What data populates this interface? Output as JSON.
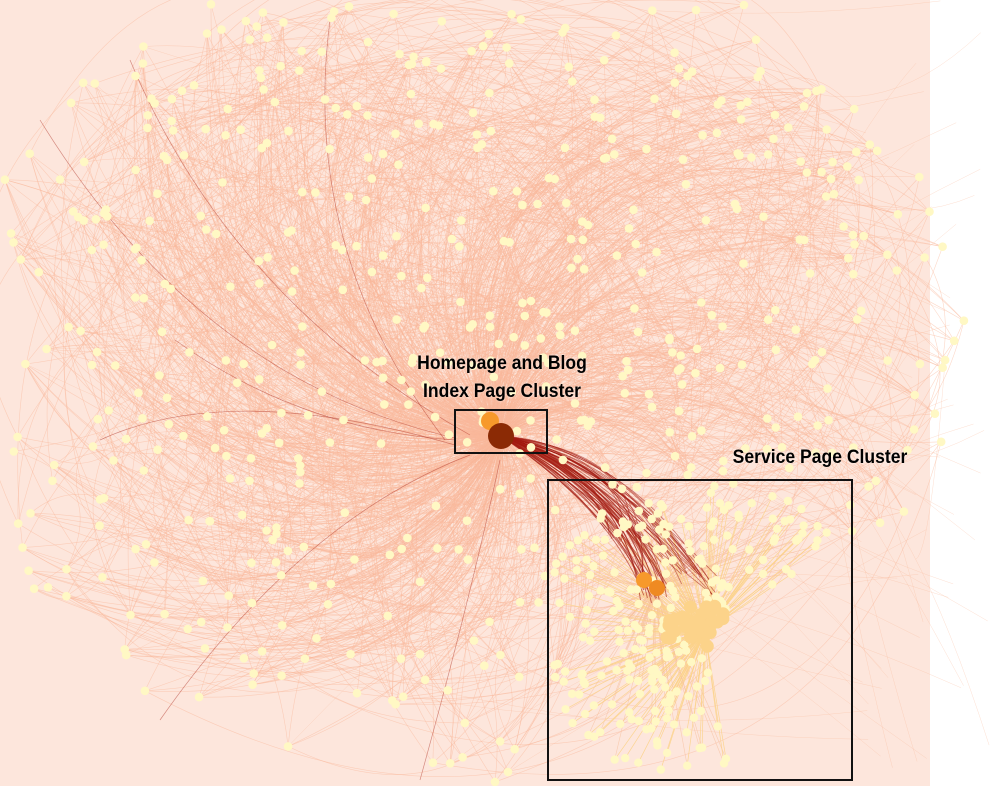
{
  "graph": {
    "background": "#ffffff",
    "edge_color": "#f9b89a",
    "strong_edge_color": "#a31a10",
    "node_color": "#fff8c4",
    "hub_node_color": "#8b2a05",
    "secondary_hub_color": "#f7992b",
    "service_node_color": "#fcd38a",
    "edge_peach_color": "#f6bf9c"
  },
  "annotations": {
    "homepage_cluster": {
      "label_line1": "Homepage and Blog",
      "label_line2": "Index Page Cluster"
    },
    "service_cluster": {
      "label": "Service Page Cluster"
    }
  }
}
